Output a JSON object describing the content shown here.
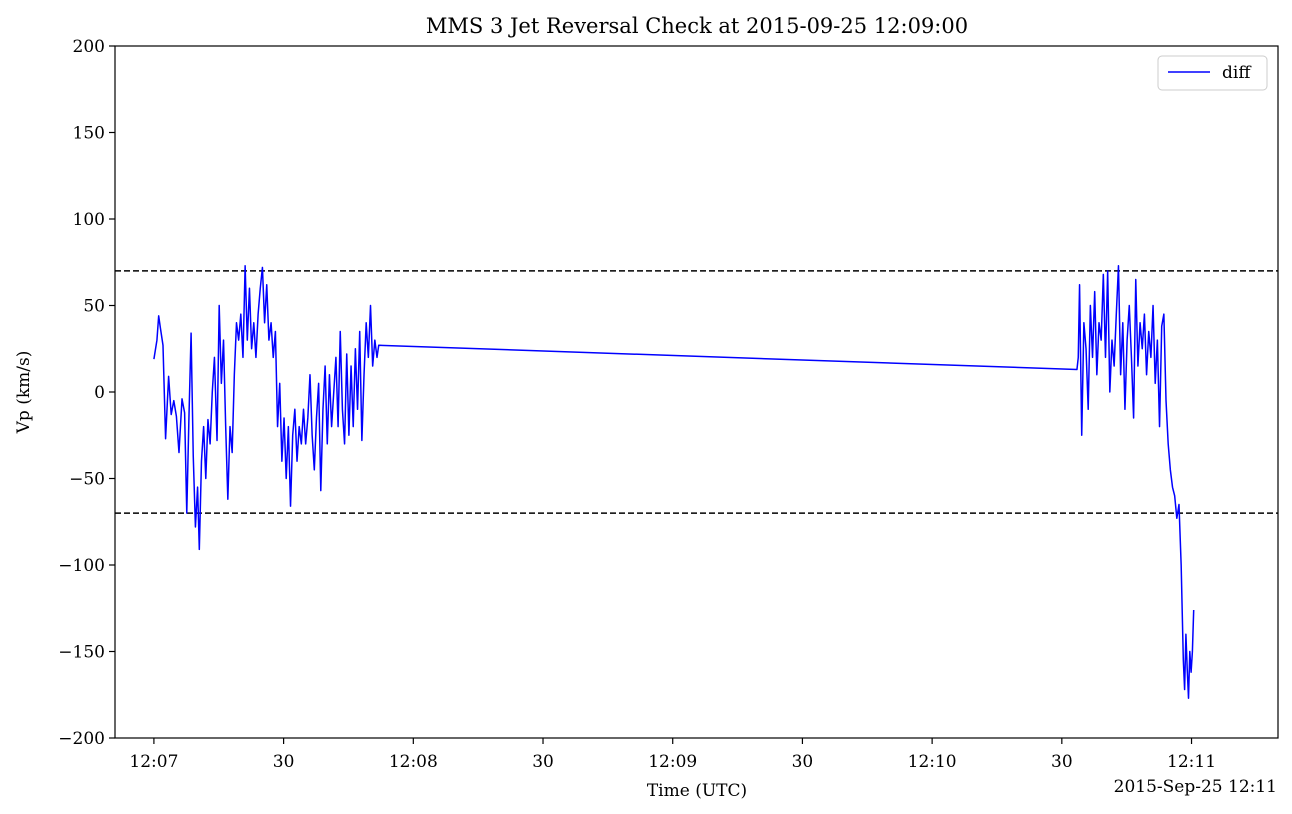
{
  "chart_data": {
    "type": "line",
    "title": "MMS 3 Jet Reversal Check at 2015-09-25 12:09:00",
    "xlabel": "Time (UTC)",
    "ylabel": "Vp (km/s)",
    "date_offset_label": "2015-Sep-25 12:11",
    "xlim": [
      "12:06:51",
      "12:11:20"
    ],
    "ylim": [
      -200,
      200
    ],
    "x_ticks": [
      {
        "time": "12:07:00",
        "label": "12:07"
      },
      {
        "time": "12:07:30",
        "label": "30"
      },
      {
        "time": "12:08:00",
        "label": "12:08"
      },
      {
        "time": "12:08:30",
        "label": "30"
      },
      {
        "time": "12:09:00",
        "label": "12:09"
      },
      {
        "time": "12:09:30",
        "label": "30"
      },
      {
        "time": "12:10:00",
        "label": "12:10"
      },
      {
        "time": "12:10:30",
        "label": "30"
      },
      {
        "time": "12:11:00",
        "label": "12:11"
      }
    ],
    "y_ticks": [
      {
        "value": 200,
        "label": "200"
      },
      {
        "value": 150,
        "label": "150"
      },
      {
        "value": 100,
        "label": "100"
      },
      {
        "value": 50,
        "label": "50"
      },
      {
        "value": 0,
        "label": "0"
      },
      {
        "value": -50,
        "label": "−50"
      },
      {
        "value": -100,
        "label": "−100"
      },
      {
        "value": -150,
        "label": "−150"
      },
      {
        "value": -200,
        "label": "−200"
      }
    ],
    "threshold_lines": [
      {
        "y": 70,
        "color": "#000000",
        "style": "dashed"
      },
      {
        "y": -70,
        "color": "#000000",
        "style": "dashed"
      }
    ],
    "legend": {
      "placement": "upper-right",
      "entries": [
        "diff"
      ]
    },
    "grid": false,
    "series": [
      {
        "name": "diff",
        "color": "#0000ff",
        "points": [
          [
            "12:07:00.0",
            19
          ],
          [
            "12:07:00.7",
            30
          ],
          [
            "12:07:01.1",
            44
          ],
          [
            "12:07:01.5",
            37
          ],
          [
            "12:07:02.1",
            27
          ],
          [
            "12:07:02.7",
            -27
          ],
          [
            "12:07:03.4",
            9
          ],
          [
            "12:07:04.0",
            -13
          ],
          [
            "12:07:04.6",
            -5
          ],
          [
            "12:07:05.2",
            -14
          ],
          [
            "12:07:05.8",
            -35
          ],
          [
            "12:07:06.5",
            -4
          ],
          [
            "12:07:07.1",
            -12
          ],
          [
            "12:07:07.6",
            -70
          ],
          [
            "12:07:08.1",
            -15
          ],
          [
            "12:07:08.6",
            34
          ],
          [
            "12:07:09.1",
            -37
          ],
          [
            "12:07:09.6",
            -78
          ],
          [
            "12:07:10.1",
            -55
          ],
          [
            "12:07:10.5",
            -91
          ],
          [
            "12:07:11.0",
            -40
          ],
          [
            "12:07:11.5",
            -20
          ],
          [
            "12:07:12.0",
            -50
          ],
          [
            "12:07:12.5",
            -16
          ],
          [
            "12:07:13.0",
            -30
          ],
          [
            "12:07:13.5",
            0
          ],
          [
            "12:07:14.0",
            20
          ],
          [
            "12:07:14.6",
            -28
          ],
          [
            "12:07:15.1",
            50
          ],
          [
            "12:07:15.6",
            5
          ],
          [
            "12:07:16.1",
            30
          ],
          [
            "12:07:16.6",
            -20
          ],
          [
            "12:07:17.1",
            -62
          ],
          [
            "12:07:17.6",
            -20
          ],
          [
            "12:07:18.1",
            -35
          ],
          [
            "12:07:18.6",
            10
          ],
          [
            "12:07:19.1",
            40
          ],
          [
            "12:07:19.6",
            30
          ],
          [
            "12:07:20.1",
            45
          ],
          [
            "12:07:20.6",
            20
          ],
          [
            "12:07:21.1",
            73
          ],
          [
            "12:07:21.6",
            30
          ],
          [
            "12:07:22.1",
            60
          ],
          [
            "12:07:22.6",
            25
          ],
          [
            "12:07:23.1",
            40
          ],
          [
            "12:07:23.6",
            20
          ],
          [
            "12:07:24.1",
            45
          ],
          [
            "12:07:24.6",
            60
          ],
          [
            "12:07:25.1",
            72
          ],
          [
            "12:07:25.6",
            40
          ],
          [
            "12:07:26.1",
            62
          ],
          [
            "12:07:26.6",
            30
          ],
          [
            "12:07:27.1",
            40
          ],
          [
            "12:07:27.6",
            20
          ],
          [
            "12:07:28.1",
            35
          ],
          [
            "12:07:28.6",
            -20
          ],
          [
            "12:07:29.1",
            5
          ],
          [
            "12:07:29.6",
            -40
          ],
          [
            "12:07:30.1",
            -15
          ],
          [
            "12:07:30.6",
            -50
          ],
          [
            "12:07:31.1",
            -20
          ],
          [
            "12:07:31.6",
            -66
          ],
          [
            "12:07:32.1",
            -25
          ],
          [
            "12:07:32.6",
            -10
          ],
          [
            "12:07:33.1",
            -40
          ],
          [
            "12:07:33.6",
            -20
          ],
          [
            "12:07:34.1",
            -30
          ],
          [
            "12:07:34.6",
            -10
          ],
          [
            "12:07:35.1",
            -30
          ],
          [
            "12:07:35.6",
            -15
          ],
          [
            "12:07:36.1",
            10
          ],
          [
            "12:07:36.6",
            -25
          ],
          [
            "12:07:37.1",
            -45
          ],
          [
            "12:07:37.6",
            -15
          ],
          [
            "12:07:38.1",
            5
          ],
          [
            "12:07:38.6",
            -57
          ],
          [
            "12:07:39.1",
            -10
          ],
          [
            "12:07:39.6",
            15
          ],
          [
            "12:07:40.1",
            -30
          ],
          [
            "12:07:40.6",
            10
          ],
          [
            "12:07:41.1",
            -20
          ],
          [
            "12:07:41.6",
            0
          ],
          [
            "12:07:42.1",
            20
          ],
          [
            "12:07:42.6",
            -20
          ],
          [
            "12:07:43.1",
            35
          ],
          [
            "12:07:43.6",
            -10
          ],
          [
            "12:07:44.1",
            -30
          ],
          [
            "12:07:44.6",
            22
          ],
          [
            "12:07:45.1",
            -25
          ],
          [
            "12:07:45.6",
            15
          ],
          [
            "12:07:46.1",
            -20
          ],
          [
            "12:07:46.6",
            25
          ],
          [
            "12:07:47.1",
            -10
          ],
          [
            "12:07:47.6",
            35
          ],
          [
            "12:07:48.1",
            -28
          ],
          [
            "12:07:48.6",
            10
          ],
          [
            "12:07:49.1",
            40
          ],
          [
            "12:07:49.6",
            20
          ],
          [
            "12:07:50.1",
            50
          ],
          [
            "12:07:50.6",
            15
          ],
          [
            "12:07:51.1",
            30
          ],
          [
            "12:07:51.6",
            20
          ],
          [
            "12:07:52.0",
            27
          ],
          [
            "12:10:33.5",
            13
          ],
          [
            "12:10:33.8",
            20
          ],
          [
            "12:10:34.1",
            62
          ],
          [
            "12:10:34.6",
            -25
          ],
          [
            "12:10:35.1",
            40
          ],
          [
            "12:10:35.6",
            25
          ],
          [
            "12:10:36.1",
            -10
          ],
          [
            "12:10:36.6",
            50
          ],
          [
            "12:10:37.1",
            20
          ],
          [
            "12:10:37.6",
            58
          ],
          [
            "12:10:38.1",
            10
          ],
          [
            "12:10:38.6",
            40
          ],
          [
            "12:10:39.1",
            30
          ],
          [
            "12:10:39.6",
            68
          ],
          [
            "12:10:40.1",
            20
          ],
          [
            "12:10:40.6",
            70
          ],
          [
            "12:10:41.1",
            0
          ],
          [
            "12:10:41.6",
            30
          ],
          [
            "12:10:42.1",
            15
          ],
          [
            "12:10:42.6",
            45
          ],
          [
            "12:10:43.1",
            73
          ],
          [
            "12:10:43.6",
            10
          ],
          [
            "12:10:44.1",
            40
          ],
          [
            "12:10:44.6",
            -10
          ],
          [
            "12:10:45.1",
            30
          ],
          [
            "12:10:45.6",
            50
          ],
          [
            "12:10:46.1",
            20
          ],
          [
            "12:10:46.6",
            -15
          ],
          [
            "12:10:47.1",
            65
          ],
          [
            "12:10:47.6",
            15
          ],
          [
            "12:10:48.1",
            40
          ],
          [
            "12:10:48.6",
            25
          ],
          [
            "12:10:49.1",
            45
          ],
          [
            "12:10:49.6",
            10
          ],
          [
            "12:10:50.1",
            35
          ],
          [
            "12:10:50.6",
            20
          ],
          [
            "12:10:51.1",
            50
          ],
          [
            "12:10:51.6",
            5
          ],
          [
            "12:10:52.1",
            30
          ],
          [
            "12:10:52.6",
            -20
          ],
          [
            "12:10:53.1",
            38
          ],
          [
            "12:10:53.6",
            45
          ],
          [
            "12:10:54.1",
            -5
          ],
          [
            "12:10:54.6",
            -30
          ],
          [
            "12:10:55.1",
            -45
          ],
          [
            "12:10:55.6",
            -55
          ],
          [
            "12:10:56.1",
            -60
          ],
          [
            "12:10:56.6",
            -73
          ],
          [
            "12:10:57.1",
            -65
          ],
          [
            "12:10:57.6",
            -100
          ],
          [
            "12:10:58.1",
            -155
          ],
          [
            "12:10:58.4",
            -172
          ],
          [
            "12:10:58.7",
            -140
          ],
          [
            "12:10:59.0",
            -160
          ],
          [
            "12:10:59.3",
            -177
          ],
          [
            "12:10:59.6",
            -150
          ],
          [
            "12:10:59.9",
            -162
          ],
          [
            "12:11:00.2",
            -150
          ],
          [
            "12:11:00.5",
            -126
          ]
        ]
      }
    ]
  }
}
